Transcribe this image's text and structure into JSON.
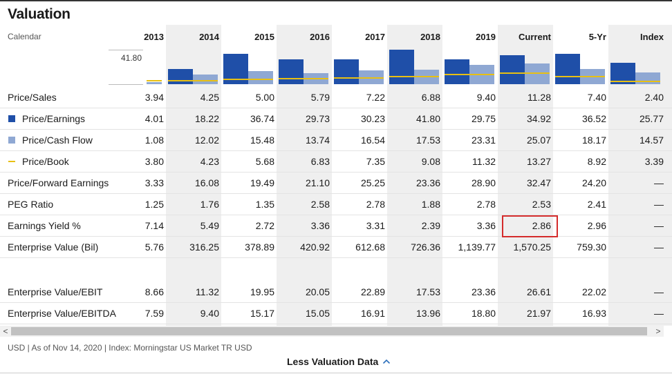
{
  "title": "Valuation",
  "calendar_label": "Calendar",
  "axis_max_label": "41.80",
  "columns": [
    "2013",
    "2014",
    "2015",
    "2016",
    "2017",
    "2018",
    "2019",
    "Current",
    "5-Yr",
    "Index"
  ],
  "chart_data": {
    "type": "bar",
    "categories": [
      "2013",
      "2014",
      "2015",
      "2016",
      "2017",
      "2018",
      "2019",
      "Current",
      "5-Yr",
      "Index"
    ],
    "ylim": [
      0,
      41.8
    ],
    "series": [
      {
        "name": "Price/Earnings",
        "color": "#1f4fa8",
        "values": [
          4.01,
          18.22,
          36.74,
          29.73,
          30.23,
          41.8,
          29.75,
          34.92,
          36.52,
          25.77
        ]
      },
      {
        "name": "Price/Cash Flow",
        "color": "#8fa8d3",
        "values": [
          1.08,
          12.02,
          15.48,
          13.74,
          16.54,
          17.53,
          23.31,
          25.07,
          18.17,
          14.57
        ]
      },
      {
        "name": "Price/Book",
        "color": "#e8c012",
        "values": [
          3.8,
          4.23,
          5.68,
          6.83,
          7.35,
          9.08,
          11.32,
          13.27,
          8.92,
          3.39
        ]
      }
    ]
  },
  "rows": [
    {
      "label": "Price/Sales",
      "legend": "",
      "values": [
        "3.94",
        "4.25",
        "5.00",
        "5.79",
        "7.22",
        "6.88",
        "9.40",
        "11.28",
        "7.40",
        "2.40"
      ]
    },
    {
      "label": "Price/Earnings",
      "legend": "bar-dark",
      "values": [
        "4.01",
        "18.22",
        "36.74",
        "29.73",
        "30.23",
        "41.80",
        "29.75",
        "34.92",
        "36.52",
        "25.77"
      ]
    },
    {
      "label": "Price/Cash Flow",
      "legend": "bar-light",
      "values": [
        "1.08",
        "12.02",
        "15.48",
        "13.74",
        "16.54",
        "17.53",
        "23.31",
        "25.07",
        "18.17",
        "14.57"
      ]
    },
    {
      "label": "Price/Book",
      "legend": "line",
      "values": [
        "3.80",
        "4.23",
        "5.68",
        "6.83",
        "7.35",
        "9.08",
        "11.32",
        "13.27",
        "8.92",
        "3.39"
      ]
    },
    {
      "label": "Price/Forward Earnings",
      "legend": "",
      "values": [
        "3.33",
        "16.08",
        "19.49",
        "21.10",
        "25.25",
        "23.36",
        "28.90",
        "32.47",
        "24.20",
        "—"
      ]
    },
    {
      "label": "PEG Ratio",
      "legend": "",
      "values": [
        "1.25",
        "1.76",
        "1.35",
        "2.58",
        "2.78",
        "1.88",
        "2.78",
        "2.53",
        "2.41",
        "—"
      ]
    },
    {
      "label": "Earnings Yield %",
      "legend": "",
      "values": [
        "7.14",
        "5.49",
        "2.72",
        "3.36",
        "3.31",
        "2.39",
        "3.36",
        "2.86",
        "2.96",
        "—"
      ]
    },
    {
      "label": "Enterprise Value (Bil)",
      "legend": "",
      "values": [
        "5.76",
        "316.25",
        "378.89",
        "420.92",
        "612.68",
        "726.36",
        "1,139.77",
        "1,570.25",
        "759.30",
        "—"
      ]
    },
    {
      "label": "Enterprise Value/EBIT",
      "legend": "",
      "values": [
        "8.66",
        "11.32",
        "19.95",
        "20.05",
        "22.89",
        "17.53",
        "23.36",
        "26.61",
        "22.02",
        "—"
      ]
    },
    {
      "label": "Enterprise Value/EBITDA",
      "legend": "",
      "values": [
        "7.59",
        "9.40",
        "15.17",
        "15.05",
        "16.91",
        "13.96",
        "18.80",
        "21.97",
        "16.93",
        "—"
      ]
    }
  ],
  "highlight": {
    "row": 6,
    "col": 7
  },
  "colors": {
    "band": "#efefef",
    "dark_bar": "#1f4fa8",
    "light_bar": "#8fa8d3",
    "pb_line": "#e8c012",
    "highlight": "#d42b2b"
  },
  "scrollbar": {
    "left_arrow": "<",
    "right_arrow": ">"
  },
  "footnote": "USD | As of Nov 14, 2020 | Index: Morningstar US Market TR USD",
  "less_button_label": "Less Valuation Data",
  "icons": {
    "less_button": "chevron-up-icon"
  }
}
